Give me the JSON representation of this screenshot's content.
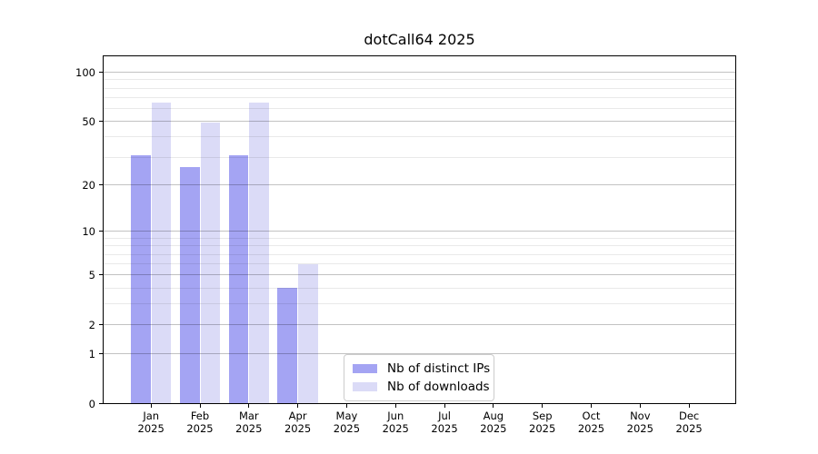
{
  "title": "dotCall64 2025",
  "colors": {
    "bar_distinct_ips": "#a4a4f3",
    "bar_downloads": "#dbdbf7",
    "grid_major": "#bdbdbd",
    "grid_minor": "#e8e8e8",
    "axis": "#000000",
    "legend_border": "#cccccc",
    "background": "#ffffff"
  },
  "legend": {
    "items": [
      {
        "label": "Nb of distinct IPs",
        "color_key": "bar_distinct_ips"
      },
      {
        "label": "Nb of downloads",
        "color_key": "bar_downloads"
      }
    ]
  },
  "y_axis": {
    "ticks": [
      0,
      1,
      2,
      5,
      10,
      20,
      50,
      100
    ],
    "minor_gridlines": [
      3,
      4,
      6,
      7,
      8,
      9,
      30,
      40,
      60,
      70,
      80,
      90
    ],
    "scale": "log1p"
  },
  "x_axis": {
    "months": [
      {
        "month": "Jan",
        "year": "2025"
      },
      {
        "month": "Feb",
        "year": "2025"
      },
      {
        "month": "Mar",
        "year": "2025"
      },
      {
        "month": "Apr",
        "year": "2025"
      },
      {
        "month": "May",
        "year": "2025"
      },
      {
        "month": "Jun",
        "year": "2025"
      },
      {
        "month": "Jul",
        "year": "2025"
      },
      {
        "month": "Aug",
        "year": "2025"
      },
      {
        "month": "Sep",
        "year": "2025"
      },
      {
        "month": "Oct",
        "year": "2025"
      },
      {
        "month": "Nov",
        "year": "2025"
      },
      {
        "month": "Dec",
        "year": "2025"
      }
    ]
  },
  "chart_data": {
    "type": "bar",
    "title": "dotCall64 2025",
    "categories": [
      "Jan 2025",
      "Feb 2025",
      "Mar 2025",
      "Apr 2025",
      "May 2025",
      "Jun 2025",
      "Jul 2025",
      "Aug 2025",
      "Sep 2025",
      "Oct 2025",
      "Nov 2025",
      "Dec 2025"
    ],
    "series": [
      {
        "name": "Nb of distinct IPs",
        "values": [
          31,
          26,
          31,
          4,
          0,
          0,
          0,
          0,
          0,
          0,
          0,
          0
        ]
      },
      {
        "name": "Nb of downloads",
        "values": [
          65,
          49,
          65,
          6,
          0,
          0,
          0,
          0,
          0,
          0,
          0,
          0
        ]
      }
    ],
    "xlabel": "",
    "ylabel": "",
    "yscale": "log1p",
    "ylim": [
      0,
      127
    ],
    "y_ticks": [
      0,
      1,
      2,
      5,
      10,
      20,
      50,
      100
    ],
    "grid": true,
    "legend_position": "lower center"
  }
}
